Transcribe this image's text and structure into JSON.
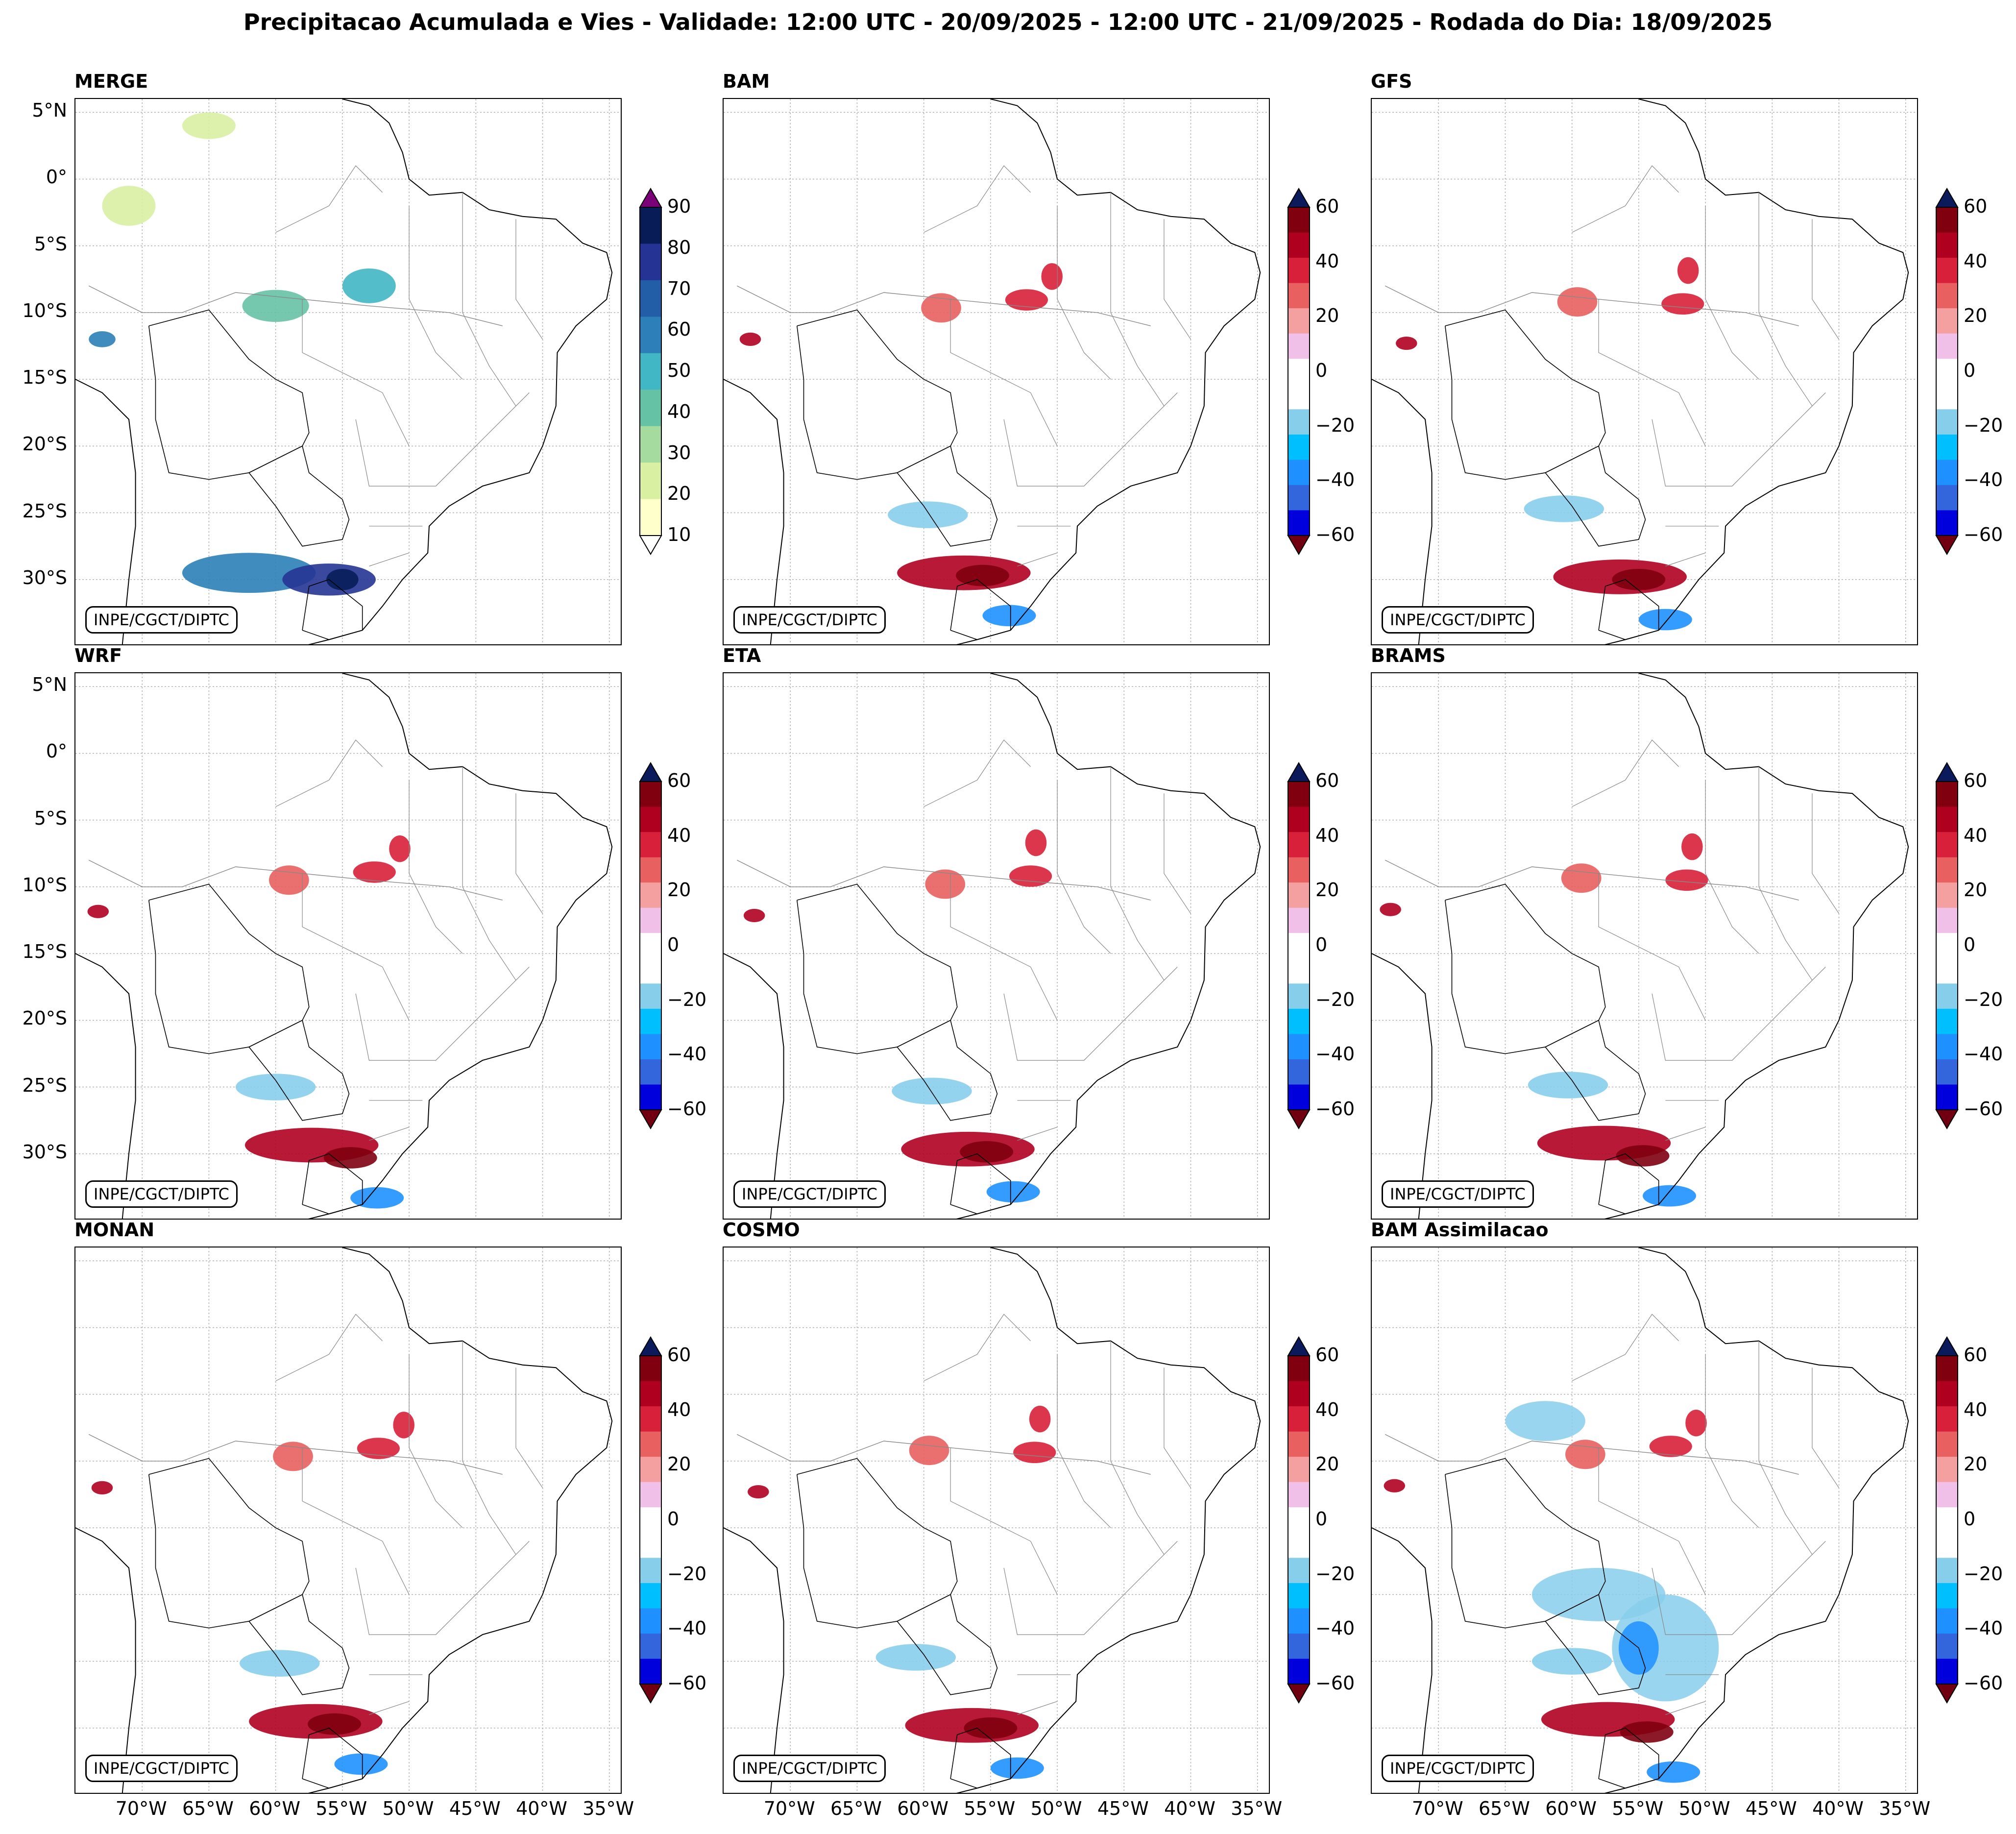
{
  "figure": {
    "title": "Precipitacao Acumulada e Vies - Validade: 12:00 UTC - 20/09/2025 - 12:00 UTC - 21/09/2025 - Rodada do Dia: 18/09/2025",
    "credit": "INPE/CGCT/DIPTC"
  },
  "axes": {
    "lat_labels": [
      "5°N",
      "0°",
      "5°S",
      "10°S",
      "15°S",
      "20°S",
      "25°S",
      "30°S"
    ],
    "lat_values": [
      5,
      0,
      -5,
      -10,
      -15,
      -20,
      -25,
      -30
    ],
    "lon_labels": [
      "70°W",
      "65°W",
      "60°W",
      "55°W",
      "50°W",
      "45°W",
      "40°W",
      "35°W"
    ],
    "lon_values": [
      -70,
      -65,
      -60,
      -55,
      -50,
      -45,
      -40,
      -35
    ],
    "lon_range": [
      -75,
      -34
    ],
    "lat_range": [
      -35,
      6
    ]
  },
  "colorbars": {
    "precip": {
      "ticks": [
        "90",
        "80",
        "70",
        "60",
        "50",
        "40",
        "30",
        "20",
        "10"
      ],
      "colors": [
        "#ffffcc",
        "#d9f0a3",
        "#a6dba0",
        "#66c2a4",
        "#41b6c4",
        "#2c7fb8",
        "#225ea8",
        "#253494",
        "#081d58"
      ],
      "extend_top": "#7a0177",
      "extend_bottom": "#ffffff"
    },
    "bias": {
      "ticks": [
        "60",
        "40",
        "20",
        "0",
        "−20",
        "−40",
        "−60"
      ],
      "colors": [
        "#0000dd",
        "#3366dd",
        "#1e90ff",
        "#00bfff",
        "#87ceeb",
        "#ffffff",
        "#ffffff",
        "#f0c0e8",
        "#f4a0a0",
        "#e86060",
        "#d8203a",
        "#b00020",
        "#800010"
      ],
      "extend_top": "#0a1a5a",
      "extend_bottom": "#700010"
    }
  },
  "panels": [
    {
      "name": "MERGE",
      "cbar": "precip"
    },
    {
      "name": "BAM",
      "cbar": "bias"
    },
    {
      "name": "GFS",
      "cbar": "bias"
    },
    {
      "name": "WRF",
      "cbar": "bias"
    },
    {
      "name": "ETA",
      "cbar": "bias"
    },
    {
      "name": "BRAMS",
      "cbar": "bias"
    },
    {
      "name": "MONAN",
      "cbar": "bias"
    },
    {
      "name": "COSMO",
      "cbar": "bias"
    },
    {
      "name": "BAM Assimilacao",
      "cbar": "bias"
    }
  ]
}
